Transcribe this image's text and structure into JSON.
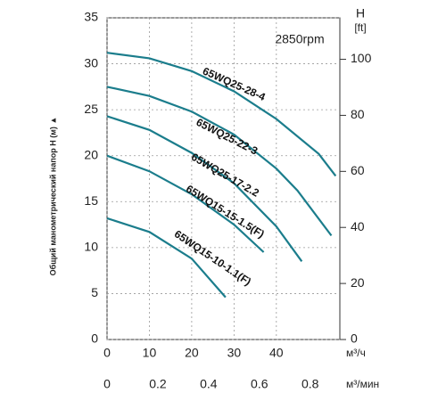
{
  "chart_data": {
    "type": "line",
    "annotation": "2850rpm",
    "y_label": "Общий манометрический напор H (м) ▲",
    "y2_label": "H",
    "y2_unit": "[ft]",
    "x_label": "м³/ч",
    "x2_label": "м³/мин",
    "xlim": [
      0,
      55
    ],
    "xticks": [
      0,
      10,
      20,
      30,
      40
    ],
    "x2lim": [
      0,
      0.917
    ],
    "x2ticks": [
      0,
      0.2,
      0.4,
      0.6,
      0.8
    ],
    "ylim": [
      0,
      35
    ],
    "yticks": [
      0,
      5,
      10,
      15,
      20,
      25,
      30,
      35
    ],
    "y2lim": [
      0,
      114.8
    ],
    "y2ticks": [
      0,
      20,
      40,
      60,
      80,
      100
    ],
    "grid": true,
    "series": [
      {
        "name": "65WQ25-28-4",
        "color": "#1b7d8c",
        "x": [
          0,
          10,
          20,
          30,
          40,
          50,
          54
        ],
        "values": [
          31.2,
          30.6,
          29.2,
          27,
          24,
          20.2,
          17.8
        ]
      },
      {
        "name": "65WQ25-22-3",
        "color": "#1b7d8c",
        "x": [
          0,
          10,
          20,
          30,
          40,
          45,
          53
        ],
        "values": [
          27.5,
          26.5,
          24.8,
          22.3,
          18.6,
          16.2,
          11.3
        ]
      },
      {
        "name": "65WQ25-17-2.2",
        "color": "#1b7d8c",
        "x": [
          0,
          10,
          20,
          30,
          40,
          46
        ],
        "values": [
          24.3,
          22.8,
          20.3,
          17,
          12.3,
          8.5
        ]
      },
      {
        "name": "65WQ15-15-1.5(F)",
        "color": "#1b7d8c",
        "x": [
          0,
          10,
          20,
          30,
          37
        ],
        "values": [
          20,
          18.3,
          15.8,
          12.5,
          9.5
        ]
      },
      {
        "name": "65WQ15-10-1.1(F)",
        "color": "#1b7d8c",
        "x": [
          0,
          10,
          20,
          28
        ],
        "values": [
          13.2,
          11.7,
          8.8,
          4.6
        ]
      }
    ]
  }
}
